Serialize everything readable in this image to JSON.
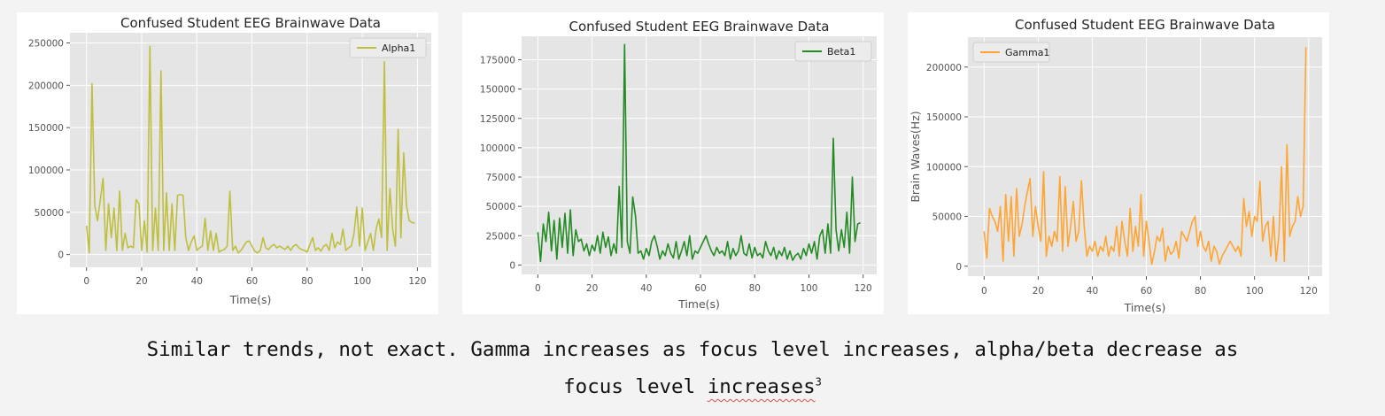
{
  "caption": {
    "line1": "Similar trends, not exact. Gamma increases as focus level increases, alpha/beta decrease as",
    "line2_prefix": "focus level ",
    "line2_word": "increases",
    "line2_sup": "3"
  },
  "chart_data": [
    {
      "type": "line",
      "title": "Confused Student EEG Brainwave Data",
      "xlabel": "Time(s)",
      "ylabel": "",
      "color": "#bfbf3f",
      "legend_position": "top-right",
      "grid": true,
      "xlim": [
        -6,
        125
      ],
      "ylim": [
        -15000,
        262000
      ],
      "xticks": [
        0,
        20,
        40,
        60,
        80,
        100,
        120
      ],
      "yticks": [
        0,
        50000,
        100000,
        150000,
        200000,
        250000
      ],
      "series": [
        {
          "name": "Alpha1",
          "x": [
            0,
            1,
            2,
            3,
            4,
            5,
            6,
            7,
            8,
            9,
            10,
            11,
            12,
            13,
            14,
            15,
            16,
            17,
            18,
            19,
            20,
            21,
            22,
            23,
            24,
            25,
            26,
            27,
            28,
            29,
            30,
            31,
            32,
            33,
            34,
            35,
            36,
            37,
            38,
            39,
            40,
            41,
            42,
            43,
            44,
            45,
            46,
            47,
            48,
            49,
            50,
            51,
            52,
            53,
            54,
            55,
            56,
            57,
            58,
            59,
            60,
            61,
            62,
            63,
            64,
            65,
            66,
            67,
            68,
            69,
            70,
            71,
            72,
            73,
            74,
            75,
            76,
            77,
            78,
            79,
            80,
            81,
            82,
            83,
            84,
            85,
            86,
            87,
            88,
            89,
            90,
            91,
            92,
            93,
            94,
            95,
            96,
            97,
            98,
            99,
            100,
            101,
            102,
            103,
            104,
            105,
            106,
            107,
            108,
            109,
            110,
            111,
            112,
            113,
            114,
            115,
            116,
            117,
            118,
            119
          ],
          "y": [
            34000,
            2000,
            202000,
            58000,
            40000,
            65000,
            90000,
            5000,
            60000,
            20000,
            55000,
            5000,
            75000,
            5000,
            25000,
            8000,
            10000,
            8000,
            65000,
            60000,
            5000,
            40000,
            3000,
            246000,
            5000,
            55000,
            5000,
            217000,
            5000,
            73000,
            5000,
            60000,
            5000,
            70000,
            71000,
            70000,
            20000,
            5000,
            15000,
            22000,
            5000,
            8000,
            10000,
            43000,
            5000,
            28000,
            5000,
            25000,
            3000,
            5000,
            6000,
            10000,
            75000,
            5000,
            10000,
            2000,
            5000,
            10000,
            15000,
            16000,
            10000,
            4000,
            2000,
            5000,
            20000,
            8000,
            6000,
            10000,
            12000,
            8000,
            10000,
            8000,
            6000,
            10000,
            5000,
            10000,
            12000,
            8000,
            6000,
            5000,
            3000,
            12000,
            20000,
            5000,
            8000,
            4000,
            10000,
            12000,
            5000,
            25000,
            8000,
            15000,
            12000,
            30000,
            5000,
            8000,
            10000,
            25000,
            56000,
            10000,
            55000,
            5000,
            15000,
            25000,
            5000,
            30000,
            42000,
            20000,
            228000,
            5000,
            78000,
            30000,
            10000,
            148000,
            20000,
            120000,
            58000,
            40000,
            38000,
            37000
          ]
        }
      ]
    },
    {
      "type": "line",
      "title": "Confused Student EEG Brainwave Data",
      "xlabel": "Time(s)",
      "ylabel": "",
      "color": "#238b23",
      "legend_position": "top-right",
      "grid": true,
      "xlim": [
        -6,
        125
      ],
      "ylim": [
        -8000,
        195000
      ],
      "xticks": [
        0,
        20,
        40,
        60,
        80,
        100,
        120
      ],
      "yticks": [
        0,
        25000,
        50000,
        75000,
        100000,
        125000,
        150000,
        175000
      ],
      "series": [
        {
          "name": "Beta1",
          "x": [
            0,
            1,
            2,
            3,
            4,
            5,
            6,
            7,
            8,
            9,
            10,
            11,
            12,
            13,
            14,
            15,
            16,
            17,
            18,
            19,
            20,
            21,
            22,
            23,
            24,
            25,
            26,
            27,
            28,
            29,
            30,
            31,
            32,
            33,
            34,
            35,
            36,
            37,
            38,
            39,
            40,
            41,
            42,
            43,
            44,
            45,
            46,
            47,
            48,
            49,
            50,
            51,
            52,
            53,
            54,
            55,
            56,
            57,
            58,
            59,
            60,
            61,
            62,
            63,
            64,
            65,
            66,
            67,
            68,
            69,
            70,
            71,
            72,
            73,
            74,
            75,
            76,
            77,
            78,
            79,
            80,
            81,
            82,
            83,
            84,
            85,
            86,
            87,
            88,
            89,
            90,
            91,
            92,
            93,
            94,
            95,
            96,
            97,
            98,
            99,
            100,
            101,
            102,
            103,
            104,
            105,
            106,
            107,
            108,
            109,
            110,
            111,
            112,
            113,
            114,
            115,
            116,
            117,
            118,
            119
          ],
          "y": [
            28000,
            3000,
            35000,
            20000,
            45000,
            12000,
            38000,
            5000,
            40000,
            15000,
            44000,
            10000,
            47000,
            8000,
            30000,
            20000,
            22000,
            12000,
            18000,
            8000,
            17000,
            12000,
            25000,
            10000,
            28000,
            15000,
            24000,
            8000,
            18000,
            10000,
            67000,
            15000,
            188000,
            20000,
            10000,
            58000,
            42000,
            10000,
            12000,
            5000,
            14000,
            8000,
            20000,
            25000,
            16000,
            5000,
            12000,
            8000,
            18000,
            10000,
            6000,
            20000,
            5000,
            12000,
            20000,
            8000,
            25000,
            5000,
            12000,
            10000,
            15000,
            20000,
            25000,
            18000,
            12000,
            8000,
            15000,
            10000,
            12000,
            8000,
            20000,
            5000,
            14000,
            8000,
            12000,
            25000,
            10000,
            8000,
            18000,
            6000,
            15000,
            8000,
            10000,
            6000,
            20000,
            12000,
            8000,
            15000,
            5000,
            12000,
            8000,
            15000,
            5000,
            12000,
            4000,
            8000,
            10000,
            5000,
            14000,
            8000,
            18000,
            10000,
            20000,
            5000,
            25000,
            30000,
            10000,
            35000,
            10000,
            108000,
            30000,
            12000,
            30000,
            15000,
            45000,
            10000,
            75000,
            20000,
            35000,
            36000
          ]
        }
      ]
    },
    {
      "type": "line",
      "title": "Confused Student EEG Brainwave Data",
      "xlabel": "Time(s)",
      "ylabel": "Brain Waves(Hz)",
      "color": "#ffa533",
      "legend_position": "top-left",
      "grid": true,
      "xlim": [
        -6,
        125
      ],
      "ylim": [
        -10000,
        230000
      ],
      "xticks": [
        0,
        20,
        40,
        60,
        80,
        100,
        120
      ],
      "yticks": [
        0,
        50000,
        100000,
        150000,
        200000
      ],
      "series": [
        {
          "name": "Gamma1",
          "x": [
            0,
            1,
            2,
            3,
            4,
            5,
            6,
            7,
            8,
            9,
            10,
            11,
            12,
            13,
            14,
            15,
            16,
            17,
            18,
            19,
            20,
            21,
            22,
            23,
            24,
            25,
            26,
            27,
            28,
            29,
            30,
            31,
            32,
            33,
            34,
            35,
            36,
            37,
            38,
            39,
            40,
            41,
            42,
            43,
            44,
            45,
            46,
            47,
            48,
            49,
            50,
            51,
            52,
            53,
            54,
            55,
            56,
            57,
            58,
            59,
            60,
            61,
            62,
            63,
            64,
            65,
            66,
            67,
            68,
            69,
            70,
            71,
            72,
            73,
            74,
            75,
            76,
            77,
            78,
            79,
            80,
            81,
            82,
            83,
            84,
            85,
            86,
            87,
            88,
            89,
            90,
            91,
            92,
            93,
            94,
            95,
            96,
            97,
            98,
            99,
            100,
            101,
            102,
            103,
            104,
            105,
            106,
            107,
            108,
            109,
            110,
            111,
            112,
            113,
            114,
            115,
            116,
            117,
            118,
            119
          ],
          "y": [
            35000,
            8000,
            58000,
            50000,
            45000,
            35000,
            60000,
            5000,
            72000,
            25000,
            70000,
            10000,
            78000,
            30000,
            42000,
            60000,
            75000,
            88000,
            30000,
            60000,
            40000,
            25000,
            95000,
            10000,
            30000,
            20000,
            35000,
            25000,
            90000,
            15000,
            80000,
            20000,
            40000,
            65000,
            25000,
            35000,
            86000,
            40000,
            10000,
            20000,
            15000,
            25000,
            10000,
            20000,
            15000,
            30000,
            10000,
            20000,
            15000,
            40000,
            10000,
            45000,
            25000,
            10000,
            58000,
            15000,
            40000,
            20000,
            72000,
            10000,
            45000,
            25000,
            2000,
            15000,
            30000,
            25000,
            38000,
            5000,
            20000,
            12000,
            15000,
            25000,
            8000,
            35000,
            30000,
            25000,
            35000,
            45000,
            50000,
            20000,
            35000,
            20000,
            15000,
            25000,
            5000,
            20000,
            15000,
            2000,
            10000,
            15000,
            20000,
            25000,
            20000,
            15000,
            20000,
            10000,
            68000,
            40000,
            55000,
            30000,
            50000,
            45000,
            85000,
            25000,
            40000,
            45000,
            10000,
            50000,
            5000,
            30000,
            100000,
            5000,
            122000,
            30000,
            40000,
            45000,
            70000,
            50000,
            60000,
            220000
          ]
        }
      ]
    }
  ]
}
